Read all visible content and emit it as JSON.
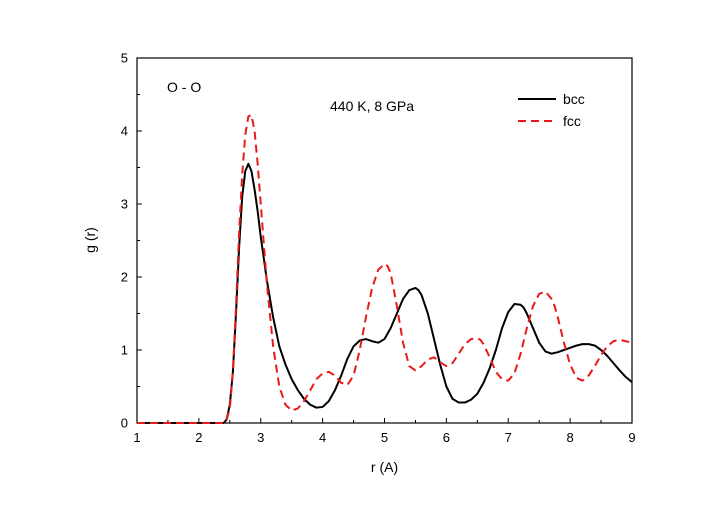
{
  "chart_data": {
    "type": "line",
    "title": "",
    "xlabel": "r (A)",
    "ylabel": "g (r)",
    "xlim": [
      1,
      9
    ],
    "ylim": [
      0,
      5
    ],
    "xticks": [
      "1",
      "2",
      "3",
      "4",
      "5",
      "6",
      "7",
      "8",
      "9"
    ],
    "yticks": [
      "0",
      "1",
      "2",
      "3",
      "4",
      "5"
    ],
    "grid": false,
    "legend_position": "top-right",
    "annotations": {
      "panel": "O - O",
      "condition": "440 K, 8 GPa"
    },
    "series": [
      {
        "name": "bcc",
        "color": "#000000",
        "style": "solid",
        "x": [
          1.0,
          2.0,
          2.4,
          2.45,
          2.5,
          2.55,
          2.6,
          2.65,
          2.7,
          2.75,
          2.8,
          2.85,
          2.9,
          2.95,
          3.0,
          3.1,
          3.2,
          3.3,
          3.4,
          3.5,
          3.6,
          3.7,
          3.8,
          3.9,
          4.0,
          4.1,
          4.2,
          4.3,
          4.4,
          4.5,
          4.6,
          4.7,
          4.8,
          4.9,
          5.0,
          5.1,
          5.2,
          5.3,
          5.4,
          5.5,
          5.55,
          5.6,
          5.7,
          5.8,
          5.9,
          6.0,
          6.1,
          6.2,
          6.3,
          6.4,
          6.5,
          6.6,
          6.7,
          6.8,
          6.9,
          7.0,
          7.1,
          7.2,
          7.25,
          7.3,
          7.4,
          7.5,
          7.6,
          7.7,
          7.8,
          7.9,
          8.0,
          8.1,
          8.2,
          8.3,
          8.4,
          8.5,
          8.6,
          8.7,
          8.8,
          8.9,
          9.0
        ],
        "y": [
          0.0,
          0.0,
          0.0,
          0.05,
          0.25,
          0.7,
          1.5,
          2.4,
          3.1,
          3.45,
          3.55,
          3.45,
          3.2,
          2.9,
          2.55,
          1.95,
          1.45,
          1.05,
          0.8,
          0.6,
          0.45,
          0.33,
          0.25,
          0.21,
          0.22,
          0.3,
          0.45,
          0.65,
          0.88,
          1.05,
          1.13,
          1.15,
          1.12,
          1.1,
          1.15,
          1.3,
          1.5,
          1.7,
          1.82,
          1.85,
          1.82,
          1.75,
          1.5,
          1.15,
          0.8,
          0.5,
          0.33,
          0.28,
          0.28,
          0.32,
          0.4,
          0.55,
          0.75,
          1.0,
          1.3,
          1.52,
          1.63,
          1.62,
          1.58,
          1.5,
          1.3,
          1.1,
          0.98,
          0.95,
          0.97,
          1.0,
          1.03,
          1.06,
          1.08,
          1.08,
          1.06,
          1.0,
          0.92,
          0.82,
          0.72,
          0.63,
          0.56
        ]
      },
      {
        "name": "fcc",
        "color": "#e8191a",
        "style": "dashed",
        "x": [
          1.0,
          2.0,
          2.4,
          2.45,
          2.5,
          2.55,
          2.6,
          2.65,
          2.7,
          2.75,
          2.8,
          2.85,
          2.9,
          2.95,
          3.0,
          3.1,
          3.2,
          3.3,
          3.4,
          3.5,
          3.6,
          3.7,
          3.8,
          3.9,
          4.0,
          4.1,
          4.2,
          4.3,
          4.4,
          4.5,
          4.6,
          4.7,
          4.8,
          4.9,
          5.0,
          5.05,
          5.1,
          5.2,
          5.3,
          5.4,
          5.5,
          5.6,
          5.7,
          5.8,
          5.9,
          6.0,
          6.1,
          6.2,
          6.3,
          6.4,
          6.5,
          6.55,
          6.6,
          6.7,
          6.8,
          6.9,
          7.0,
          7.1,
          7.2,
          7.3,
          7.4,
          7.5,
          7.6,
          7.7,
          7.75,
          7.8,
          7.9,
          8.0,
          8.1,
          8.2,
          8.3,
          8.4,
          8.5,
          8.6,
          8.7,
          8.8,
          8.9,
          9.0
        ],
        "y": [
          0.0,
          0.0,
          0.0,
          0.05,
          0.2,
          0.7,
          1.6,
          2.6,
          3.4,
          3.95,
          4.2,
          4.22,
          4.0,
          3.55,
          3.0,
          1.9,
          1.05,
          0.5,
          0.25,
          0.17,
          0.2,
          0.3,
          0.45,
          0.6,
          0.68,
          0.7,
          0.65,
          0.55,
          0.52,
          0.65,
          1.0,
          1.45,
          1.85,
          2.1,
          2.18,
          2.15,
          2.05,
          1.6,
          1.1,
          0.78,
          0.72,
          0.78,
          0.87,
          0.9,
          0.83,
          0.78,
          0.82,
          0.95,
          1.08,
          1.15,
          1.16,
          1.14,
          1.08,
          0.9,
          0.7,
          0.6,
          0.58,
          0.68,
          0.95,
          1.3,
          1.6,
          1.77,
          1.8,
          1.7,
          1.6,
          1.45,
          1.1,
          0.8,
          0.62,
          0.58,
          0.65,
          0.78,
          0.93,
          1.05,
          1.12,
          1.14,
          1.12,
          1.1
        ]
      }
    ]
  }
}
